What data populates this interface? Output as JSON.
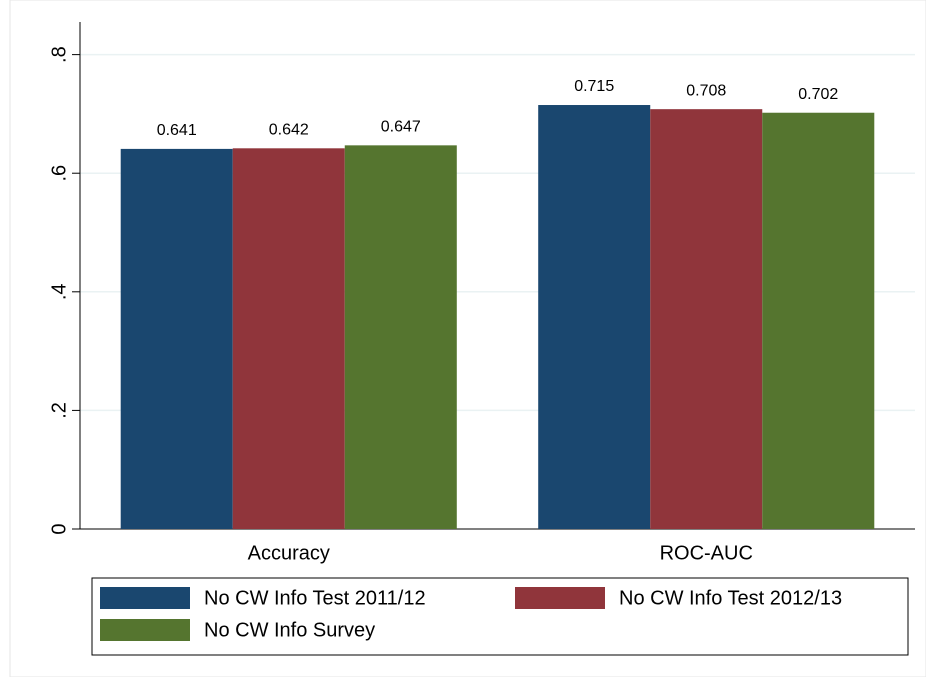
{
  "chart_data": {
    "type": "bar",
    "categories": [
      "Accuracy",
      "ROC-AUC"
    ],
    "series": [
      {
        "name": "No CW Info Test 2011/12",
        "color": "#1a476f",
        "values": [
          0.641,
          0.715
        ]
      },
      {
        "name": "No CW Info Test 2012/13",
        "color": "#90353b",
        "values": [
          0.642,
          0.708
        ]
      },
      {
        "name": "No CW Info Survey",
        "color": "#55752f",
        "values": [
          0.647,
          0.702
        ]
      }
    ],
    "ylim": [
      0,
      0.855
    ],
    "yticks": [
      0,
      {
        "value": 0.2,
        "label": ".2"
      },
      {
        "value": 0.4,
        "label": ".4"
      },
      {
        "value": 0.6,
        "label": ".6"
      },
      {
        "value": 0.8,
        "label": ".8"
      }
    ],
    "grid": true,
    "legend": "bottom"
  }
}
